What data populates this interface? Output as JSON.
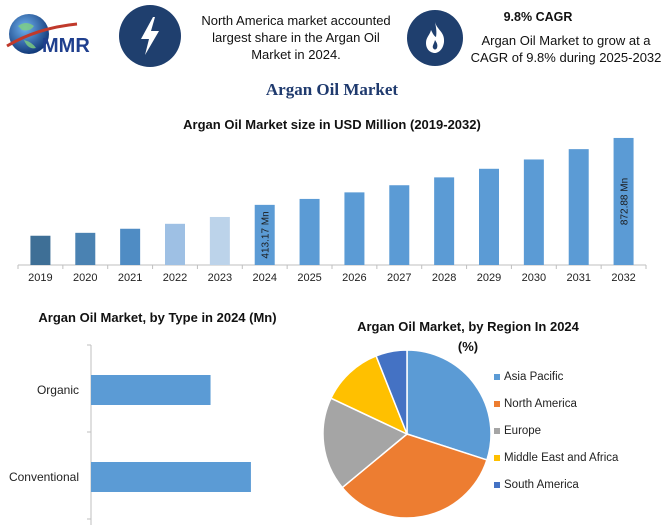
{
  "header": {
    "logo_text": "MMR",
    "info_text": "North America market accounted largest share in the Argan Oil Market in 2024.",
    "cagr_title": "9.8% CAGR",
    "cagr_text": "Argan Oil Market to grow at a CAGR of 9.8% during 2025-2032",
    "bolt_icon": "lightning-bolt-icon",
    "flame_icon": "flame-icon",
    "badge_color": "#1f3f6e"
  },
  "main_title": "Argan Oil Market",
  "chart_data": [
    {
      "type": "bar",
      "title": "Argan Oil Market size in USD Million (2019-2032)",
      "categories": [
        "2019",
        "2020",
        "2021",
        "2022",
        "2023",
        "2024",
        "2025",
        "2026",
        "2027",
        "2028",
        "2029",
        "2030",
        "2031",
        "2032"
      ],
      "values": [
        201,
        221,
        249,
        283,
        330,
        413.17,
        454,
        499,
        548,
        602,
        661,
        725,
        796,
        872.88
      ],
      "colors": [
        "#3e6f96",
        "#4a82b2",
        "#4f8cc4",
        "#9ec0e4",
        "#bcd3ea",
        "#5b9bd5",
        "#5b9bd5",
        "#5b9bd5",
        "#5b9bd5",
        "#5b9bd5",
        "#5b9bd5",
        "#5b9bd5",
        "#5b9bd5",
        "#5b9bd5"
      ],
      "data_labels": {
        "2024": "413.17 Mn",
        "2032": "872.88 Mn"
      },
      "ylim": [
        0,
        900
      ]
    },
    {
      "type": "bar",
      "orientation": "horizontal",
      "title": "Argan Oil Market, by Type in 2024 (Mn)",
      "categories": [
        "Organic",
        "Conventional"
      ],
      "values": [
        148,
        198
      ],
      "xlim": [
        0,
        260
      ],
      "color": "#5b9bd5"
    },
    {
      "type": "pie",
      "title": "Argan Oil Market, by Region In 2024",
      "subtitle": "(%)",
      "labels": [
        "Asia Pacific",
        "North America",
        "Europe",
        "Middle East and Africa",
        "South America"
      ],
      "values": [
        30,
        34,
        18,
        12,
        6
      ],
      "colors": [
        "#5b9bd5",
        "#ed7d31",
        "#a5a5a5",
        "#ffc000",
        "#4472c4"
      ],
      "legend_position": "right"
    }
  ]
}
